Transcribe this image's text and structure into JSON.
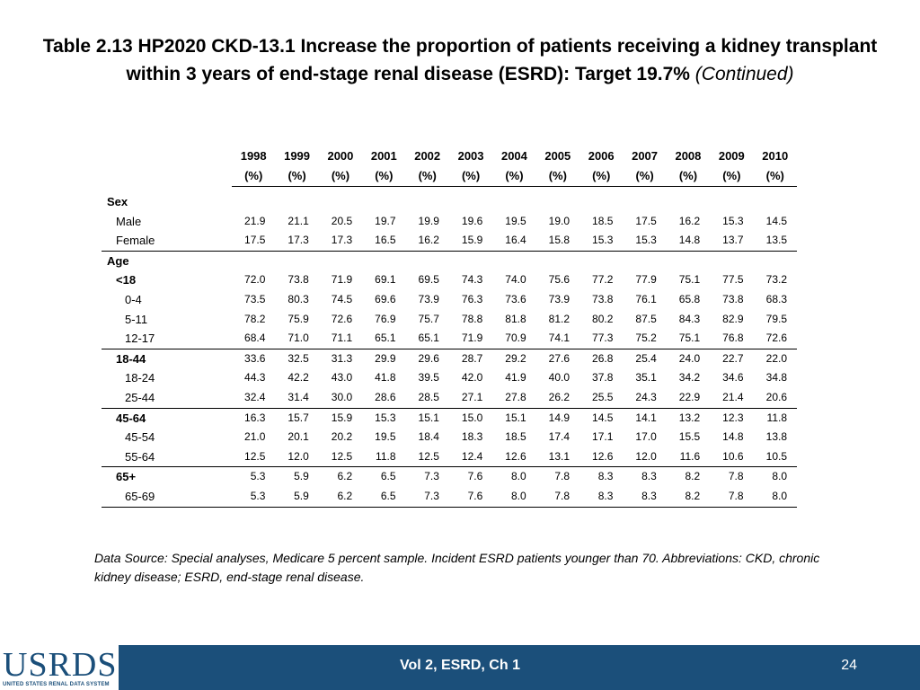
{
  "title": {
    "main": "Table 2.13 HP2020 CKD-13.1 Increase the proportion of patients receiving a kidney transplant within 3 years of end-stage renal disease (ESRD): Target 19.7%",
    "suffix": "(Continued)"
  },
  "table": {
    "years": [
      "1998",
      "1999",
      "2000",
      "2001",
      "2002",
      "2003",
      "2004",
      "2005",
      "2006",
      "2007",
      "2008",
      "2009",
      "2010"
    ],
    "unit": "(%)",
    "rows": [
      {
        "type": "group",
        "label": "Sex"
      },
      {
        "type": "row",
        "label": "Male",
        "indent": 1,
        "values": [
          "21.9",
          "21.1",
          "20.5",
          "19.7",
          "19.9",
          "19.6",
          "19.5",
          "19.0",
          "18.5",
          "17.5",
          "16.2",
          "15.3",
          "14.5"
        ]
      },
      {
        "type": "row",
        "label": "Female",
        "indent": 1,
        "rule": true,
        "values": [
          "17.5",
          "17.3",
          "17.3",
          "16.5",
          "16.2",
          "15.9",
          "16.4",
          "15.8",
          "15.3",
          "15.3",
          "14.8",
          "13.7",
          "13.5"
        ]
      },
      {
        "type": "group",
        "label": "Age"
      },
      {
        "type": "row",
        "label": "<18",
        "indent": 1,
        "bold": true,
        "values": [
          "72.0",
          "73.8",
          "71.9",
          "69.1",
          "69.5",
          "74.3",
          "74.0",
          "75.6",
          "77.2",
          "77.9",
          "75.1",
          "77.5",
          "73.2"
        ]
      },
      {
        "type": "row",
        "label": "0-4",
        "indent": 2,
        "values": [
          "73.5",
          "80.3",
          "74.5",
          "69.6",
          "73.9",
          "76.3",
          "73.6",
          "73.9",
          "73.8",
          "76.1",
          "65.8",
          "73.8",
          "68.3"
        ]
      },
      {
        "type": "row",
        "label": "5-11",
        "indent": 2,
        "values": [
          "78.2",
          "75.9",
          "72.6",
          "76.9",
          "75.7",
          "78.8",
          "81.8",
          "81.2",
          "80.2",
          "87.5",
          "84.3",
          "82.9",
          "79.5"
        ]
      },
      {
        "type": "row",
        "label": "12-17",
        "indent": 2,
        "rule": true,
        "values": [
          "68.4",
          "71.0",
          "71.1",
          "65.1",
          "65.1",
          "71.9",
          "70.9",
          "74.1",
          "77.3",
          "75.2",
          "75.1",
          "76.8",
          "72.6"
        ]
      },
      {
        "type": "row",
        "label": "18-44",
        "indent": 1,
        "bold": true,
        "values": [
          "33.6",
          "32.5",
          "31.3",
          "29.9",
          "29.6",
          "28.7",
          "29.2",
          "27.6",
          "26.8",
          "25.4",
          "24.0",
          "22.7",
          "22.0"
        ]
      },
      {
        "type": "row",
        "label": "18-24",
        "indent": 2,
        "values": [
          "44.3",
          "42.2",
          "43.0",
          "41.8",
          "39.5",
          "42.0",
          "41.9",
          "40.0",
          "37.8",
          "35.1",
          "34.2",
          "34.6",
          "34.8"
        ]
      },
      {
        "type": "row",
        "label": "25-44",
        "indent": 2,
        "rule": true,
        "values": [
          "32.4",
          "31.4",
          "30.0",
          "28.6",
          "28.5",
          "27.1",
          "27.8",
          "26.2",
          "25.5",
          "24.3",
          "22.9",
          "21.4",
          "20.6"
        ]
      },
      {
        "type": "row",
        "label": "45-64",
        "indent": 1,
        "bold": true,
        "values": [
          "16.3",
          "15.7",
          "15.9",
          "15.3",
          "15.1",
          "15.0",
          "15.1",
          "14.9",
          "14.5",
          "14.1",
          "13.2",
          "12.3",
          "11.8"
        ]
      },
      {
        "type": "row",
        "label": "45-54",
        "indent": 2,
        "values": [
          "21.0",
          "20.1",
          "20.2",
          "19.5",
          "18.4",
          "18.3",
          "18.5",
          "17.4",
          "17.1",
          "17.0",
          "15.5",
          "14.8",
          "13.8"
        ]
      },
      {
        "type": "row",
        "label": "55-64",
        "indent": 2,
        "rule": true,
        "values": [
          "12.5",
          "12.0",
          "12.5",
          "11.8",
          "12.5",
          "12.4",
          "12.6",
          "13.1",
          "12.6",
          "12.0",
          "11.6",
          "10.6",
          "10.5"
        ]
      },
      {
        "type": "row",
        "label": "65+",
        "indent": 1,
        "bold": true,
        "values": [
          "5.3",
          "5.9",
          "6.2",
          "6.5",
          "7.3",
          "7.6",
          "8.0",
          "7.8",
          "8.3",
          "8.3",
          "8.2",
          "7.8",
          "8.0"
        ]
      },
      {
        "type": "row",
        "label": "65-69",
        "indent": 2,
        "last": true,
        "values": [
          "5.3",
          "5.9",
          "6.2",
          "6.5",
          "7.3",
          "7.6",
          "8.0",
          "7.8",
          "8.3",
          "8.3",
          "8.2",
          "7.8",
          "8.0"
        ]
      }
    ]
  },
  "note": "Data Source: Special analyses, Medicare 5 percent sample. Incident ESRD patients younger than 70. Abbreviations: CKD, chronic kidney disease; ESRD, end-stage renal disease.",
  "footer": {
    "logo_text": "USRDS",
    "logo_subtext": "UNITED STATES RENAL DATA SYSTEM",
    "center": "Vol 2, ESRD, Ch 1",
    "page": "24",
    "bar_color": "#1b4f7a"
  }
}
